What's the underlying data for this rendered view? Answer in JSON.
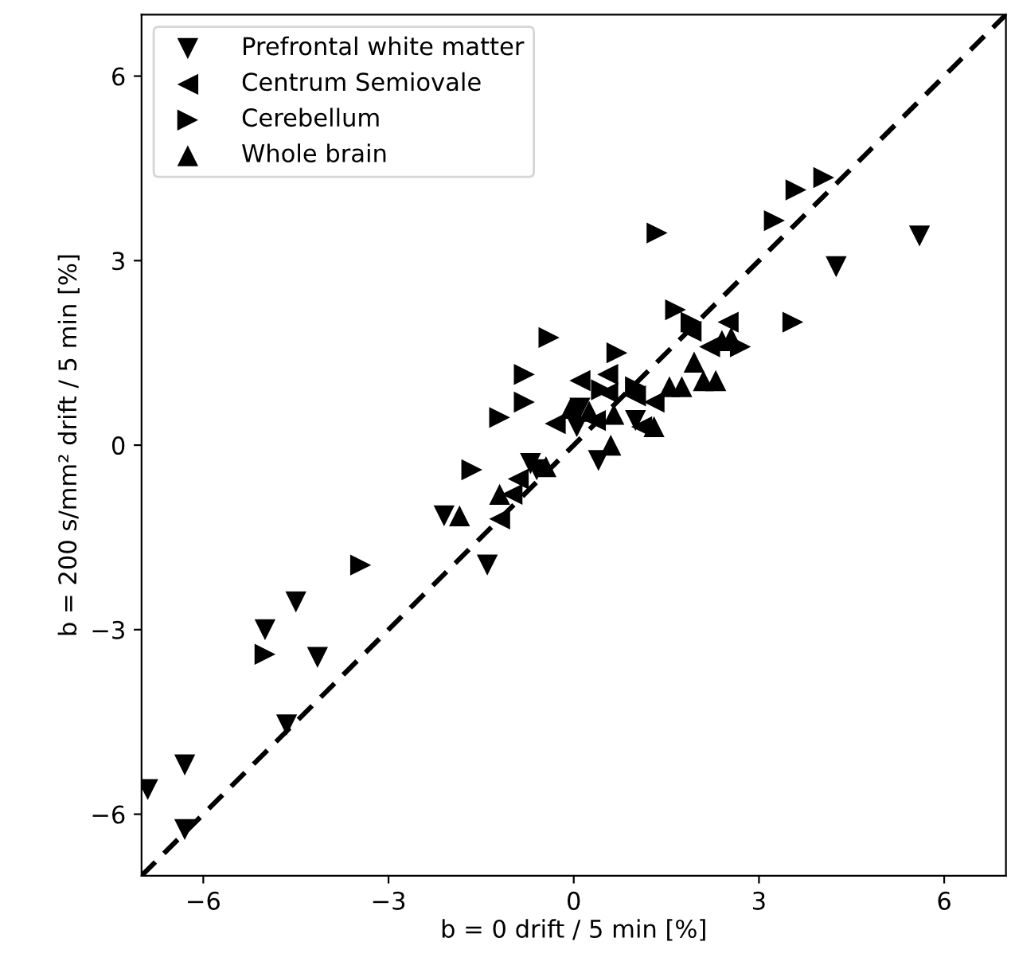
{
  "chart_data": {
    "type": "scatter",
    "xlabel": "b = 0 drift / 5 min [%]",
    "ylabel": "b = 200 s/mm² drift / 5 min [%]",
    "xlim": [
      -7,
      7
    ],
    "ylim": [
      -7,
      7
    ],
    "xticks": [
      {
        "value": -6,
        "label": "−6"
      },
      {
        "value": -3,
        "label": "−3"
      },
      0,
      3,
      6
    ],
    "yticks": [
      {
        "value": -6,
        "label": "−6"
      },
      {
        "value": -3,
        "label": "−3"
      },
      0,
      3,
      6
    ],
    "grid": false,
    "legend": "top left",
    "series": [
      {
        "name": "Prefrontal white matter",
        "color": "#000000",
        "marker": "triangle_down",
        "x": [
          -6.9,
          -6.3,
          -6.3,
          -5.0,
          -4.5,
          -4.15,
          -4.65,
          -1.4,
          -2.1,
          -0.7,
          4.25,
          5.6,
          0.1,
          0.4,
          1.0,
          0.05,
          -0.6
        ],
        "values": [
          -5.6,
          -5.2,
          -6.25,
          -3.0,
          -2.55,
          -3.45,
          -4.55,
          -1.95,
          -1.15,
          -0.3,
          2.9,
          3.4,
          0.6,
          -0.25,
          0.4,
          0.3,
          -0.4
        ]
      },
      {
        "name": "Centrum Semiovale",
        "color": "#000000",
        "marker": "triangle_left",
        "x": [
          -1.0,
          -1.2,
          -0.3,
          0.1,
          0.55,
          1.1,
          1.3,
          2.2,
          2.5,
          -0.9,
          -0.45,
          0.55,
          0.35,
          1.9,
          1.0
        ],
        "values": [
          -0.8,
          -1.2,
          0.35,
          1.05,
          0.85,
          0.3,
          0.7,
          1.6,
          2.0,
          -0.55,
          null,
          1.15,
          0.4,
          1.85,
          0.8
        ]
      },
      {
        "name": "Cerebellum",
        "color": "#000000",
        "marker": "triangle_right",
        "x": [
          3.25,
          1.35,
          3.6,
          4.05,
          3.55,
          2.7,
          1.65,
          -0.4,
          -0.8,
          -0.8,
          -1.2,
          -1.65,
          -3.45,
          -5.0,
          0.7,
          1.0,
          1.9,
          0.45
        ],
        "values": [
          3.65,
          3.45,
          4.15,
          4.35,
          2.0,
          1.6,
          2.2,
          1.75,
          1.15,
          0.7,
          0.45,
          -0.4,
          -1.95,
          -3.4,
          1.5,
          0.95,
          2.0,
          0.9
        ]
      },
      {
        "name": "Whole brain",
        "color": "#000000",
        "marker": "triangle_up",
        "x": [
          -1.85,
          -1.2,
          0.25,
          0.65,
          1.3,
          1.55,
          1.75,
          2.1,
          2.3,
          2.4,
          2.55,
          1.95,
          0.6,
          -0.05,
          -0.45
        ],
        "values": [
          -1.15,
          -0.8,
          0.55,
          0.5,
          0.3,
          0.95,
          0.95,
          1.05,
          1.05,
          1.7,
          1.75,
          1.35,
          0.0,
          0.6,
          -0.35
        ]
      },
      {
        "type": "line",
        "color": "#000000",
        "line_style": "dashed",
        "x": [
          -7,
          7
        ],
        "values": [
          -7,
          7
        ]
      }
    ]
  }
}
